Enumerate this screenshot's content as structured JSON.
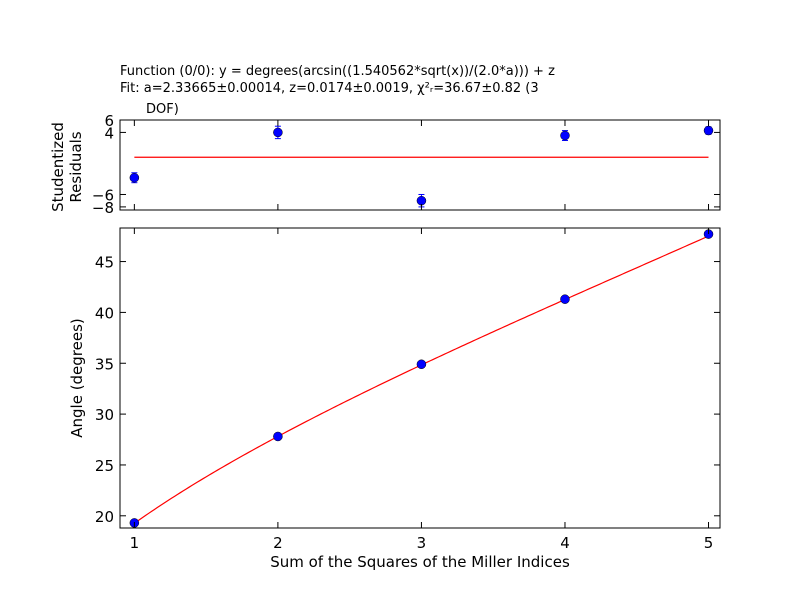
{
  "chart_data": [
    {
      "type": "scatter",
      "panel": "residuals",
      "title_lines": [
        "Function (0/0): y =  degrees(arcsin((1.540562*sqrt(x))/(2.0*a))) + z",
        "Fit: a=2.33665±0.00014, z=0.0174±0.0019, χ²ᵣ=36.67±0.82 (3",
        "DOF)"
      ],
      "ylabel_lines": [
        "Studentized",
        "Residuals"
      ],
      "xlim": [
        0.9,
        5.08
      ],
      "ylim": [
        -8.5,
        6.0
      ],
      "yticks": [
        6,
        4,
        -6,
        -8
      ],
      "ytick_labels": [
        "6",
        "4",
        "−6",
        "−8"
      ],
      "x": [
        1,
        2,
        3,
        4,
        5
      ],
      "y": [
        -3.3,
        4.0,
        -7.0,
        3.5,
        4.3
      ],
      "yerr": [
        0.8,
        1.0,
        1.0,
        0.8,
        0.6
      ],
      "zero_line": 0,
      "marker_color": "#0000ff",
      "line_color": "#ff0000"
    },
    {
      "type": "scatter",
      "panel": "fit",
      "xlabel": "Sum of the Squares of the Miller Indices",
      "ylabel": "Angle (degrees)",
      "xlim": [
        0.9,
        5.08
      ],
      "ylim": [
        18.8,
        48.3
      ],
      "xticks": [
        1,
        2,
        3,
        4,
        5
      ],
      "yticks": [
        20,
        25,
        30,
        35,
        40,
        45
      ],
      "x": [
        1,
        2,
        3,
        4,
        5
      ],
      "y": [
        19.3,
        27.8,
        34.9,
        41.3,
        47.7
      ],
      "fit_params": {
        "a": 2.33665,
        "z": 0.0174,
        "lambda": 1.540562
      },
      "marker_color": "#0000ff",
      "line_color": "#ff0000"
    }
  ]
}
